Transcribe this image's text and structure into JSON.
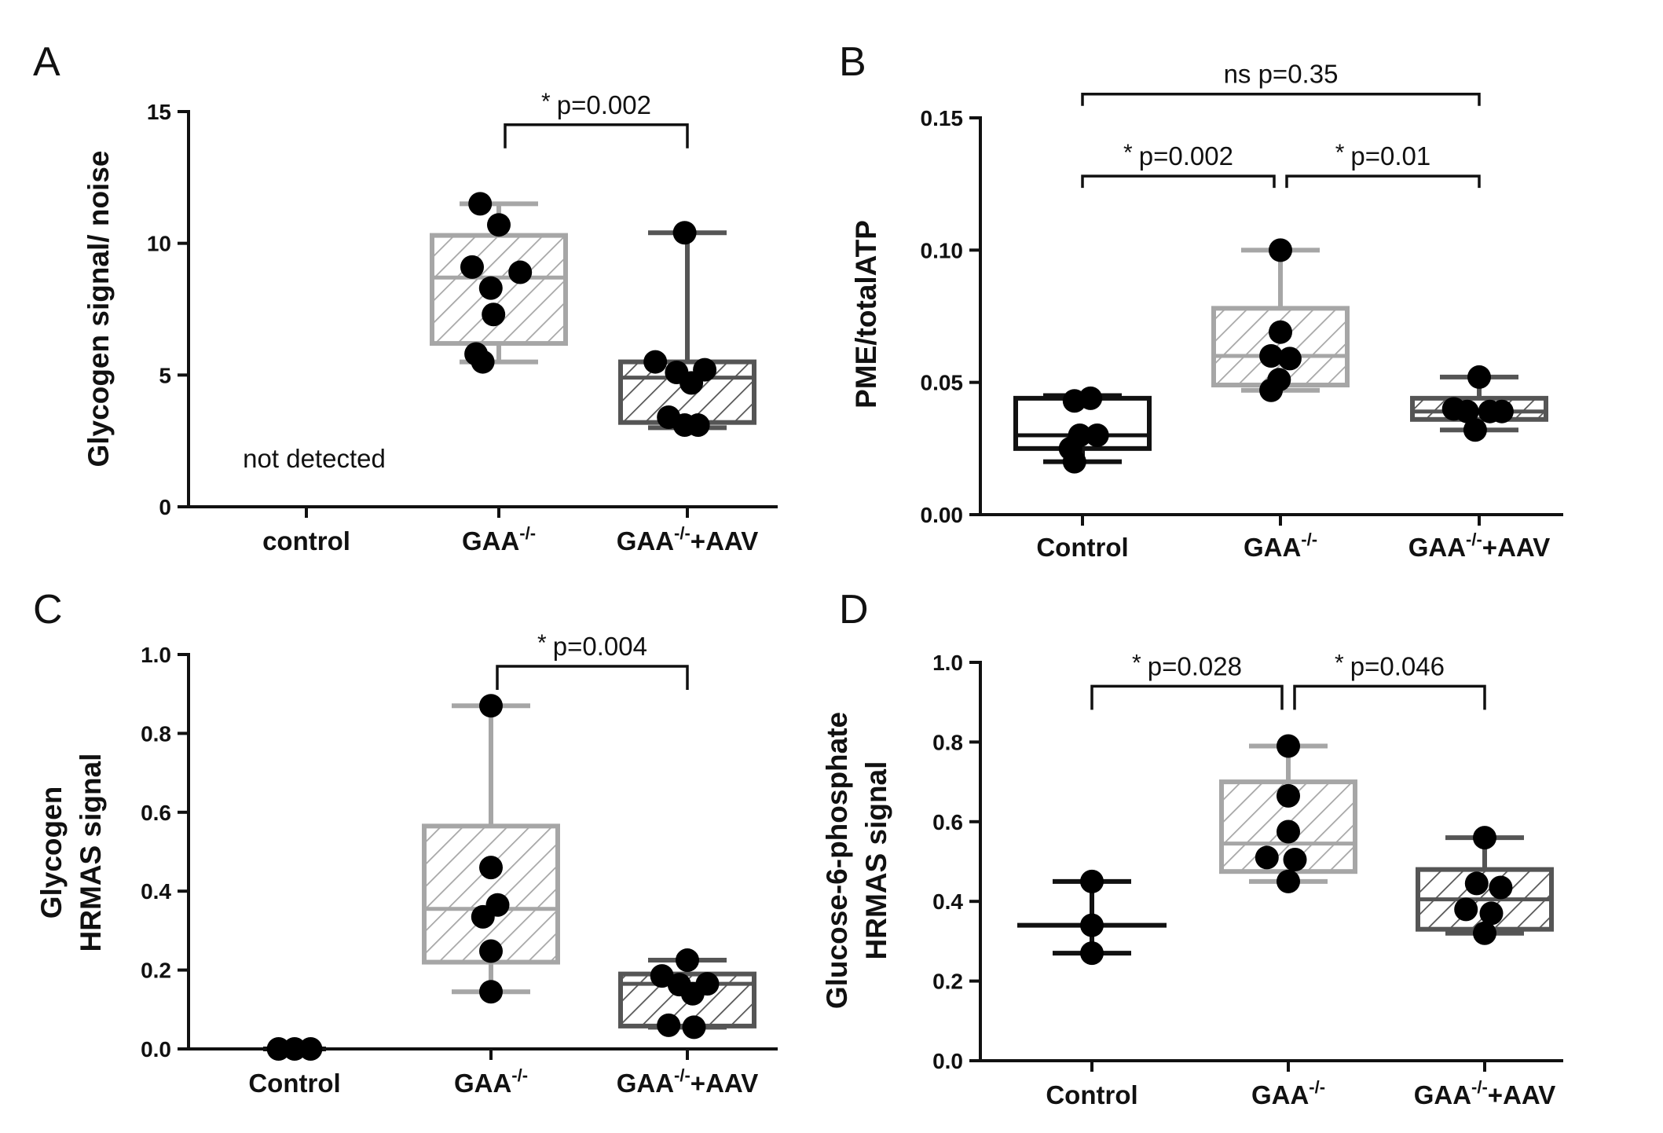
{
  "colors": {
    "control": "#111111",
    "gaa": "#a6a6a6",
    "aav": "#555555",
    "dot": "#000000",
    "axis": "#111111"
  },
  "chart_data": [
    {
      "panel": "A",
      "type": "box",
      "ylabel": "Glycogen signal/ noise",
      "ylim": [
        0,
        15
      ],
      "yticks": [
        "0",
        "5",
        "10",
        "15"
      ],
      "categories": [
        {
          "base": "control",
          "sup": "",
          "suffix": ""
        },
        {
          "base": "GAA",
          "sup": "-/-",
          "suffix": ""
        },
        {
          "base": "GAA",
          "sup": "-/-",
          "suffix": "+AAV"
        }
      ],
      "groups": [
        {
          "name": "control",
          "kind": "none",
          "note": "not detected",
          "points": []
        },
        {
          "name": "GAA-/-",
          "kind": "box",
          "style": "gaa",
          "whisker_low": 5.5,
          "q1": 6.2,
          "median": 8.7,
          "q3": 10.3,
          "whisker_high": 11.5,
          "points": [
            [
              -0.14,
              11.5
            ],
            [
              0.0,
              10.7
            ],
            [
              -0.2,
              9.1
            ],
            [
              0.16,
              8.9
            ],
            [
              -0.06,
              8.3
            ],
            [
              -0.04,
              7.3
            ],
            [
              -0.17,
              5.8
            ],
            [
              -0.12,
              5.5
            ]
          ]
        },
        {
          "name": "GAA-/-+AAV",
          "kind": "box",
          "style": "aav",
          "whisker_low": 3.0,
          "q1": 3.2,
          "median": 4.9,
          "q3": 5.5,
          "whisker_high": 10.4,
          "points": [
            [
              -0.02,
              10.4
            ],
            [
              -0.24,
              5.5
            ],
            [
              -0.08,
              5.1
            ],
            [
              0.13,
              5.2
            ],
            [
              0.03,
              4.7
            ],
            [
              -0.14,
              3.4
            ],
            [
              -0.02,
              3.1
            ],
            [
              0.08,
              3.1
            ]
          ]
        }
      ],
      "significance": [
        {
          "from": 1,
          "to": 2,
          "y": 14.5,
          "star": "*",
          "label": "p=0.002"
        }
      ]
    },
    {
      "panel": "B",
      "type": "box",
      "ylabel": "PME/totalATP",
      "ylim": [
        0,
        0.15
      ],
      "yticks": [
        "0.00",
        "0.05",
        "0.10",
        "0.15"
      ],
      "categories": [
        {
          "base": "Control",
          "sup": "",
          "suffix": ""
        },
        {
          "base": "GAA",
          "sup": "-/-",
          "suffix": ""
        },
        {
          "base": "GAA",
          "sup": "-/-",
          "suffix": "+AAV"
        }
      ],
      "groups": [
        {
          "name": "Control",
          "kind": "box",
          "style": "control",
          "whisker_low": 0.02,
          "q1": 0.025,
          "median": 0.03,
          "q3": 0.044,
          "whisker_high": 0.045,
          "points": [
            [
              -0.06,
              0.043
            ],
            [
              0.06,
              0.044
            ],
            [
              -0.02,
              0.03
            ],
            [
              0.11,
              0.03
            ],
            [
              -0.09,
              0.025
            ],
            [
              -0.06,
              0.02
            ]
          ]
        },
        {
          "name": "GAA-/-",
          "kind": "box",
          "style": "gaa",
          "whisker_low": 0.047,
          "q1": 0.049,
          "median": 0.06,
          "q3": 0.078,
          "whisker_high": 0.1,
          "points": [
            [
              0.0,
              0.1
            ],
            [
              0.0,
              0.069
            ],
            [
              -0.07,
              0.06
            ],
            [
              0.07,
              0.059
            ],
            [
              -0.01,
              0.051
            ],
            [
              -0.07,
              0.047
            ]
          ]
        },
        {
          "name": "GAA-/-+AAV",
          "kind": "box",
          "style": "aav",
          "whisker_low": 0.032,
          "q1": 0.036,
          "median": 0.039,
          "q3": 0.044,
          "whisker_high": 0.052,
          "points": [
            [
              0.0,
              0.052
            ],
            [
              -0.19,
              0.04
            ],
            [
              -0.09,
              0.039
            ],
            [
              0.08,
              0.039
            ],
            [
              0.17,
              0.039
            ],
            [
              -0.03,
              0.032
            ]
          ]
        }
      ],
      "significance": [
        {
          "from": 0,
          "to": 1,
          "y": 0.128,
          "star": "*",
          "label": "p=0.002"
        },
        {
          "from": 1,
          "to": 2,
          "y": 0.128,
          "star": "*",
          "label": "p=0.01"
        },
        {
          "from": 0,
          "to": 2,
          "y": 0.159,
          "star": "",
          "label": "ns p=0.35"
        }
      ]
    },
    {
      "panel": "C",
      "type": "box",
      "ylabel": "Glycogen HRMAS signal",
      "ylabel_lines": [
        "Glycogen",
        "HRMAS signal"
      ],
      "ylim": [
        0,
        1.0
      ],
      "yticks": [
        "0.0",
        "0.2",
        "0.4",
        "0.6",
        "0.8",
        "1.0"
      ],
      "categories": [
        {
          "base": "Control",
          "sup": "",
          "suffix": ""
        },
        {
          "base": "GAA",
          "sup": "-/-",
          "suffix": ""
        },
        {
          "base": "GAA",
          "sup": "-/-",
          "suffix": "+AAV"
        }
      ],
      "groups": [
        {
          "name": "Control",
          "kind": "dots",
          "style": "control",
          "whisker_low": 0.0,
          "median": 0.0,
          "whisker_high": 0.0,
          "points": [
            [
              -0.12,
              0.0
            ],
            [
              0.0,
              0.0
            ],
            [
              0.12,
              0.0
            ]
          ]
        },
        {
          "name": "GAA-/-",
          "kind": "box",
          "style": "gaa",
          "whisker_low": 0.145,
          "q1": 0.22,
          "median": 0.355,
          "q3": 0.565,
          "whisker_high": 0.87,
          "points": [
            [
              0.0,
              0.87
            ],
            [
              0.0,
              0.46
            ],
            [
              0.05,
              0.365
            ],
            [
              -0.06,
              0.335
            ],
            [
              0.0,
              0.248
            ],
            [
              0.0,
              0.145
            ]
          ]
        },
        {
          "name": "GAA-/-+AAV",
          "kind": "box",
          "style": "aav",
          "whisker_low": 0.055,
          "q1": 0.058,
          "median": 0.165,
          "q3": 0.19,
          "whisker_high": 0.225,
          "points": [
            [
              0.0,
              0.225
            ],
            [
              -0.19,
              0.185
            ],
            [
              -0.06,
              0.163
            ],
            [
              0.15,
              0.165
            ],
            [
              0.04,
              0.14
            ],
            [
              -0.14,
              0.06
            ],
            [
              0.05,
              0.055
            ]
          ]
        }
      ],
      "significance": [
        {
          "from": 1,
          "to": 2,
          "y": 0.97,
          "star": "*",
          "label": "p=0.004"
        }
      ]
    },
    {
      "panel": "D",
      "type": "box",
      "ylabel": "Glucose-6-phosphate HRMAS signal",
      "ylabel_lines": [
        "Glucose-6-phosphate",
        "HRMAS signal"
      ],
      "ylim": [
        0,
        1.0
      ],
      "yticks": [
        "0.0",
        "0.2",
        "0.4",
        "0.6",
        "0.8",
        "1.0"
      ],
      "categories": [
        {
          "base": "Control",
          "sup": "",
          "suffix": ""
        },
        {
          "base": "GAA",
          "sup": "-/-",
          "suffix": ""
        },
        {
          "base": "GAA",
          "sup": "-/-",
          "suffix": "+AAV"
        }
      ],
      "groups": [
        {
          "name": "Control",
          "kind": "whisker",
          "style": "control",
          "whisker_low": 0.27,
          "median": 0.34,
          "whisker_high": 0.45,
          "points": [
            [
              0.0,
              0.45
            ],
            [
              0.0,
              0.34
            ],
            [
              0.0,
              0.27
            ]
          ]
        },
        {
          "name": "GAA-/-",
          "kind": "box",
          "style": "gaa",
          "whisker_low": 0.45,
          "q1": 0.475,
          "median": 0.545,
          "q3": 0.7,
          "whisker_high": 0.79,
          "points": [
            [
              0.0,
              0.79
            ],
            [
              0.0,
              0.665
            ],
            [
              0.0,
              0.575
            ],
            [
              -0.16,
              0.51
            ],
            [
              0.05,
              0.505
            ],
            [
              0.0,
              0.45
            ]
          ]
        },
        {
          "name": "GAA-/-+AAV",
          "kind": "box",
          "style": "aav",
          "whisker_low": 0.32,
          "q1": 0.33,
          "median": 0.405,
          "q3": 0.48,
          "whisker_high": 0.56,
          "points": [
            [
              0.0,
              0.56
            ],
            [
              -0.06,
              0.445
            ],
            [
              0.12,
              0.435
            ],
            [
              -0.14,
              0.38
            ],
            [
              0.05,
              0.37
            ],
            [
              0.0,
              0.32
            ]
          ]
        }
      ],
      "significance": [
        {
          "from": 0,
          "to": 1,
          "y": 0.94,
          "star": "*",
          "label": "p=0.028"
        },
        {
          "from": 1,
          "to": 2,
          "y": 0.94,
          "star": "*",
          "label": "p=0.046"
        }
      ]
    }
  ]
}
